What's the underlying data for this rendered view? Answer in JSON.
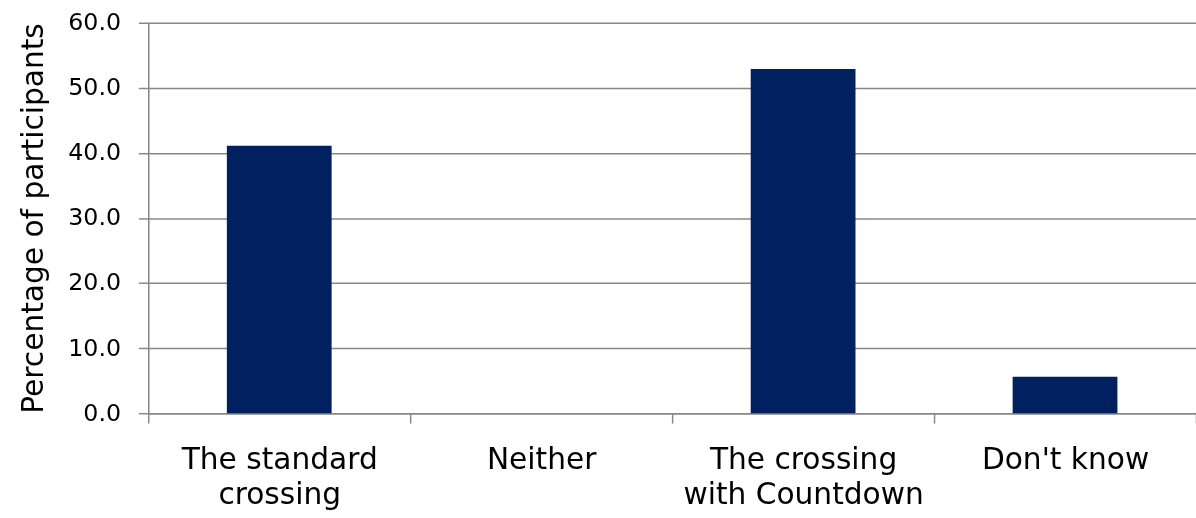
{
  "chart_data": {
    "type": "bar",
    "ylabel": "Percentage of participants",
    "categories": [
      "The standard crossing",
      "Neither",
      "The crossing with Countdown",
      "Don't know"
    ],
    "values": [
      41.1,
      0,
      52.9,
      5.6
    ],
    "color": "#002060",
    "ylim": [
      0,
      60
    ],
    "yticks": [
      {
        "value": 0,
        "label": "0.0"
      },
      {
        "value": 10,
        "label": "10.0"
      },
      {
        "value": 20,
        "label": "20.0"
      },
      {
        "value": 30,
        "label": "30.0"
      },
      {
        "value": 40,
        "label": "40.0"
      },
      {
        "value": 50,
        "label": "50.0"
      },
      {
        "value": 60,
        "label": "60.0"
      }
    ],
    "grid": "y"
  }
}
